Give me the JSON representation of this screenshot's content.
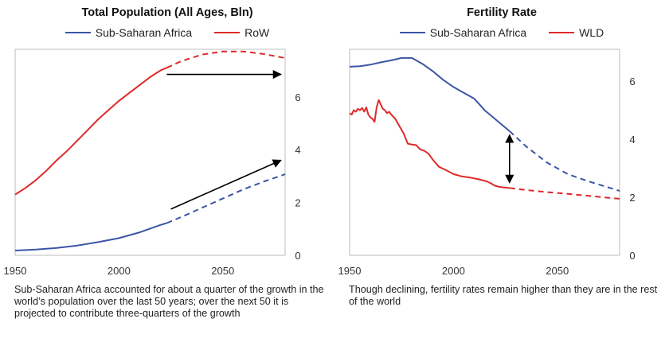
{
  "panels": [
    {
      "caption": "Sub-Saharan Africa accounted for about a quarter of the growth in the world’s population over the last 50 years; over the next 50 it is projected to contribute three-quarters of the growth"
    },
    {
      "caption": "Though declining, fertility rates remain higher than they are in the rest of the world"
    }
  ],
  "chart_data": [
    {
      "type": "line",
      "title": "Total Population (All Ages, Bln)",
      "xlabel": "",
      "ylabel": "",
      "xlim": [
        1950,
        2080
      ],
      "ylim": [
        0,
        7.8
      ],
      "xticks": [
        "1950",
        "2000",
        "2050"
      ],
      "yticks": [
        "0",
        "2",
        "4",
        "6"
      ],
      "projection_start": 2023,
      "series": [
        {
          "name": "Sub-Saharan Africa",
          "color": "#3b55a5",
          "x": [
            1950,
            1960,
            1970,
            1980,
            1990,
            2000,
            2010,
            2020,
            2023,
            2030,
            2040,
            2050,
            2060,
            2070,
            2080
          ],
          "values": [
            0.18,
            0.22,
            0.28,
            0.37,
            0.5,
            0.65,
            0.87,
            1.15,
            1.22,
            1.45,
            1.8,
            2.15,
            2.5,
            2.8,
            3.07
          ]
        },
        {
          "name": "RoW",
          "color": "#dd2a2a",
          "x": [
            1950,
            1955,
            1960,
            1965,
            1970,
            1975,
            1980,
            1985,
            1990,
            1995,
            2000,
            2005,
            2010,
            2015,
            2020,
            2023,
            2030,
            2040,
            2050,
            2060,
            2070,
            2080
          ],
          "values": [
            2.3,
            2.55,
            2.85,
            3.2,
            3.6,
            3.95,
            4.35,
            4.75,
            5.15,
            5.5,
            5.85,
            6.15,
            6.45,
            6.75,
            7.0,
            7.1,
            7.35,
            7.6,
            7.72,
            7.72,
            7.62,
            7.47
          ]
        }
      ],
      "annotations": [
        {
          "type": "arrow",
          "from": [
            2023,
            6.85
          ],
          "to": [
            2078,
            6.85
          ]
        },
        {
          "type": "arrow",
          "from": [
            2025,
            1.75
          ],
          "to": [
            2078,
            3.6
          ]
        }
      ]
    },
    {
      "type": "line",
      "title": "Fertility Rate",
      "xlabel": "",
      "ylabel": "",
      "xlim": [
        1950,
        2080
      ],
      "ylim": [
        0,
        7.1
      ],
      "xticks": [
        "1950",
        "2000",
        "2050"
      ],
      "yticks": [
        "0",
        "2",
        "4",
        "6"
      ],
      "projection_start": 2027,
      "series": [
        {
          "name": "Sub-Saharan Africa",
          "color": "#3b55a5",
          "x": [
            1950,
            1955,
            1960,
            1965,
            1970,
            1975,
            1980,
            1985,
            1990,
            1995,
            2000,
            2005,
            2010,
            2015,
            2020,
            2025,
            2027,
            2035,
            2045,
            2055,
            2065,
            2075,
            2080
          ],
          "values": [
            6.5,
            6.52,
            6.57,
            6.65,
            6.72,
            6.8,
            6.8,
            6.6,
            6.35,
            6.05,
            5.8,
            5.6,
            5.4,
            5.0,
            4.7,
            4.4,
            4.28,
            3.75,
            3.2,
            2.8,
            2.55,
            2.33,
            2.22
          ]
        },
        {
          "name": "WLD",
          "color": "#dd2a2a",
          "x": [
            1950,
            1951,
            1952,
            1953,
            1954,
            1955,
            1956,
            1957,
            1958,
            1959,
            1960,
            1961,
            1962,
            1963,
            1964,
            1965,
            1966,
            1967,
            1968,
            1969,
            1970,
            1972,
            1974,
            1976,
            1978,
            1980,
            1982,
            1984,
            1986,
            1988,
            1990,
            1993,
            1996,
            2000,
            2004,
            2008,
            2012,
            2016,
            2018,
            2020,
            2022,
            2024,
            2027,
            2035,
            2045,
            2055,
            2065,
            2075,
            2080
          ],
          "values": [
            4.9,
            4.85,
            5.0,
            4.95,
            5.05,
            5.0,
            5.08,
            4.95,
            5.1,
            4.85,
            4.75,
            4.7,
            4.6,
            5.1,
            5.35,
            5.2,
            5.05,
            5.0,
            4.9,
            4.95,
            4.85,
            4.7,
            4.45,
            4.2,
            3.85,
            3.82,
            3.8,
            3.65,
            3.6,
            3.5,
            3.3,
            3.05,
            2.95,
            2.8,
            2.72,
            2.68,
            2.62,
            2.55,
            2.48,
            2.4,
            2.36,
            2.34,
            2.32,
            2.25,
            2.18,
            2.12,
            2.05,
            1.98,
            1.95
          ]
        }
      ],
      "annotations": [
        {
          "type": "double-arrow",
          "x": 2027,
          "from": 4.15,
          "to": 2.5
        }
      ]
    }
  ]
}
